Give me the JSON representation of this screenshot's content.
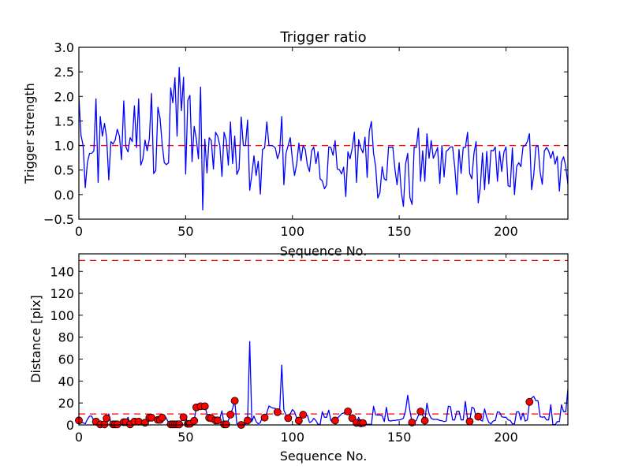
{
  "colors": {
    "line": "#0000ff",
    "threshold": "#ff0000",
    "marker": "#ff0000",
    "marker_edge": "#000000"
  },
  "chart_data": [
    {
      "type": "line",
      "title": "Trigger ratio",
      "xlabel": "Sequence No.",
      "ylabel": "Trigger strength",
      "xlim": [
        0,
        229
      ],
      "ylim": [
        -0.5,
        3.0
      ],
      "xticks": [
        "0",
        "50",
        "100",
        "150",
        "200"
      ],
      "yticks": [
        "−0.5",
        "0.0",
        "0.5",
        "1.0",
        "1.5",
        "2.0",
        "2.5",
        "3.0"
      ],
      "ytick_values": [
        -0.5,
        0,
        0.5,
        1.0,
        1.5,
        2.0,
        2.5,
        3.0
      ],
      "xtick_values": [
        0,
        50,
        100,
        150,
        200
      ],
      "hlines": [
        1.0
      ],
      "grid": false,
      "values": [
        1.99,
        1.21,
        1.0,
        0.14,
        0.65,
        0.84,
        0.84,
        0.89,
        1.95,
        0.25,
        1.59,
        1.19,
        1.45,
        1.16,
        0.3,
        1.08,
        1.03,
        1.11,
        1.33,
        1.19,
        0.71,
        1.91,
        0.97,
        0.87,
        1.16,
        1.08,
        1.81,
        0.96,
        1.95,
        0.6,
        0.73,
        1.11,
        0.89,
        1.13,
        2.06,
        0.43,
        0.49,
        1.78,
        1.56,
        1.03,
        0.65,
        0.61,
        0.65,
        2.17,
        1.87,
        2.38,
        1.19,
        2.59,
        1.71,
        2.39,
        0.42,
        1.92,
        2.02,
        0.67,
        1.39,
        1.13,
        0.73,
        2.19,
        -0.31,
        1.13,
        0.44,
        1.16,
        1.1,
        0.52,
        1.27,
        1.19,
        1.0,
        0.37,
        1.27,
        1.11,
        0.6,
        1.48,
        0.63,
        1.19,
        0.41,
        0.52,
        1.58,
        1.0,
        1.0,
        1.52,
        0.09,
        0.41,
        0.79,
        0.39,
        0.68,
        0.01,
        0.92,
        0.95,
        1.48,
        1.0,
        1.0,
        0.99,
        0.95,
        0.73,
        0.87,
        1.59,
        0.2,
        0.84,
        1.0,
        1.16,
        0.71,
        0.39,
        0.63,
        1.05,
        0.69,
        1.0,
        0.92,
        0.6,
        0.47,
        0.89,
        0.97,
        0.63,
        0.87,
        0.32,
        0.28,
        0.12,
        0.2,
        0.97,
        0.96,
        0.8,
        1.1,
        0.52,
        0.51,
        0.42,
        0.56,
        -0.04,
        0.87,
        0.73,
        0.95,
        1.27,
        0.25,
        1.12,
        0.95,
        0.85,
        1.17,
        0.35,
        1.29,
        1.49,
        0.84,
        0.57,
        -0.07,
        0.04,
        0.57,
        0.32,
        0.29,
        0.97,
        0.96,
        0.97,
        0.52,
        0.2,
        0.65,
        0.05,
        -0.24,
        0.62,
        0.84,
        -0.06,
        -0.2,
        0.97,
        0.96,
        1.35,
        0.27,
        0.89,
        0.27,
        1.24,
        0.74,
        1.1,
        0.74,
        0.84,
        0.96,
        0.23,
        1.0,
        0.36,
        0.88,
        0.92,
        0.97,
        0.97,
        0.57,
        0.0,
        0.92,
        0.43,
        0.96,
        0.96,
        1.27,
        0.43,
        0.32,
        0.84,
        1.08,
        -0.17,
        0.16,
        0.85,
        0.1,
        0.88,
        0.22,
        0.9,
        0.89,
        0.97,
        0.27,
        0.88,
        0.47,
        0.86,
        0.97,
        0.18,
        0.16,
        0.95,
        0.0,
        0.57,
        0.65,
        0.57,
        0.98,
        1.0,
        1.08,
        1.24,
        0.1,
        0.4,
        0.97,
        1.0,
        0.46,
        0.21,
        0.89,
        0.96,
        0.89,
        0.74,
        0.88,
        0.62,
        0.78,
        0.07,
        0.67,
        0.77,
        0.57,
        0.21
      ]
    },
    {
      "type": "line",
      "title": "",
      "xlabel": "Sequence No.",
      "ylabel": "Distance [pix]",
      "xlim": [
        0,
        229
      ],
      "ylim": [
        0,
        156
      ],
      "xticks": [
        "0",
        "50",
        "100",
        "150",
        "200"
      ],
      "xtick_values": [
        0,
        50,
        100,
        150,
        200
      ],
      "yticks": [
        "0",
        "20",
        "40",
        "60",
        "80",
        "100",
        "120",
        "140"
      ],
      "ytick_values": [
        0,
        20,
        40,
        60,
        80,
        100,
        120,
        140
      ],
      "hlines": [
        10,
        150
      ],
      "grid": false,
      "values": [
        4.1,
        2,
        2,
        1,
        5,
        8,
        8,
        4,
        3,
        1,
        0.5,
        1,
        0.5,
        6,
        10,
        2,
        0.5,
        0.5,
        0.5,
        1,
        2,
        2.5,
        2.5,
        7,
        0.5,
        2,
        3,
        3,
        3,
        2,
        2,
        2,
        5,
        6.6,
        6.6,
        5,
        4,
        4.6,
        4.6,
        6.6,
        9,
        6,
        2,
        0.5,
        0.5,
        0.5,
        0.5,
        0.5,
        4,
        7,
        7,
        1,
        1,
        2,
        3.8,
        16,
        17,
        17,
        16,
        17,
        10,
        6.5,
        6,
        5,
        4.1,
        4.1,
        6,
        12.8,
        0.5,
        0.5,
        4,
        9.4,
        15,
        22,
        1,
        1,
        0,
        1,
        1,
        4,
        76,
        3,
        8,
        3,
        1,
        2,
        8,
        6.7,
        11,
        17.3,
        16,
        15.3,
        15,
        11.7,
        12,
        54.6,
        13.4,
        9,
        6.2,
        10,
        14,
        12,
        6,
        3.9,
        8,
        9.3,
        9,
        8.8,
        2.2,
        3,
        6,
        4,
        0.5,
        0.5,
        12,
        7,
        7,
        13.5,
        3.9,
        3,
        4,
        6,
        8,
        10,
        11,
        11.5,
        12.3,
        9,
        6.2,
        3,
        1.9,
        7,
        1.5,
        1.7,
        0.5,
        0.5,
        0.5,
        0.5,
        17,
        9.3,
        9,
        9,
        8.5,
        3,
        16,
        4,
        3.5,
        4,
        4,
        4.5,
        4.5,
        5,
        6.2,
        13,
        27,
        13,
        2.2,
        2.5,
        4,
        8.7,
        12.2,
        8.7,
        3.9,
        19.8,
        10,
        6,
        5,
        5,
        5,
        4,
        3.8,
        3,
        3.5,
        17.1,
        16.5,
        4.5,
        4.5,
        12.5,
        12.5,
        4.5,
        4.5,
        21.5,
        4.5,
        3.2,
        16.1,
        15.2,
        7.5,
        7.5,
        4.5,
        3.5,
        14.6,
        7,
        2.2,
        1,
        3.5,
        4,
        11.9,
        11.5,
        7.5,
        7,
        7,
        4.5,
        4,
        1,
        1,
        11.9,
        11.9,
        4.5,
        10.7,
        3.5,
        4.5,
        21,
        24.5,
        26,
        22,
        22,
        7.5,
        7,
        7.5,
        4.5,
        4.5,
        18.4,
        0.2,
        0.2,
        3,
        3,
        18.4,
        12,
        12,
        32.6
      ],
      "marker_indices": [
        0,
        8,
        10,
        12,
        13,
        16,
        17,
        18,
        21,
        22,
        24,
        26,
        28,
        31,
        33,
        34,
        37,
        38,
        39,
        43,
        44,
        45,
        46,
        47,
        49,
        51,
        52,
        54,
        55,
        57,
        59,
        61,
        62,
        64,
        65,
        68,
        69,
        71,
        73,
        76,
        79,
        87,
        93,
        98,
        103,
        105,
        120,
        126,
        128,
        130,
        132,
        133,
        156,
        160,
        162,
        183,
        187,
        211
      ]
    }
  ]
}
